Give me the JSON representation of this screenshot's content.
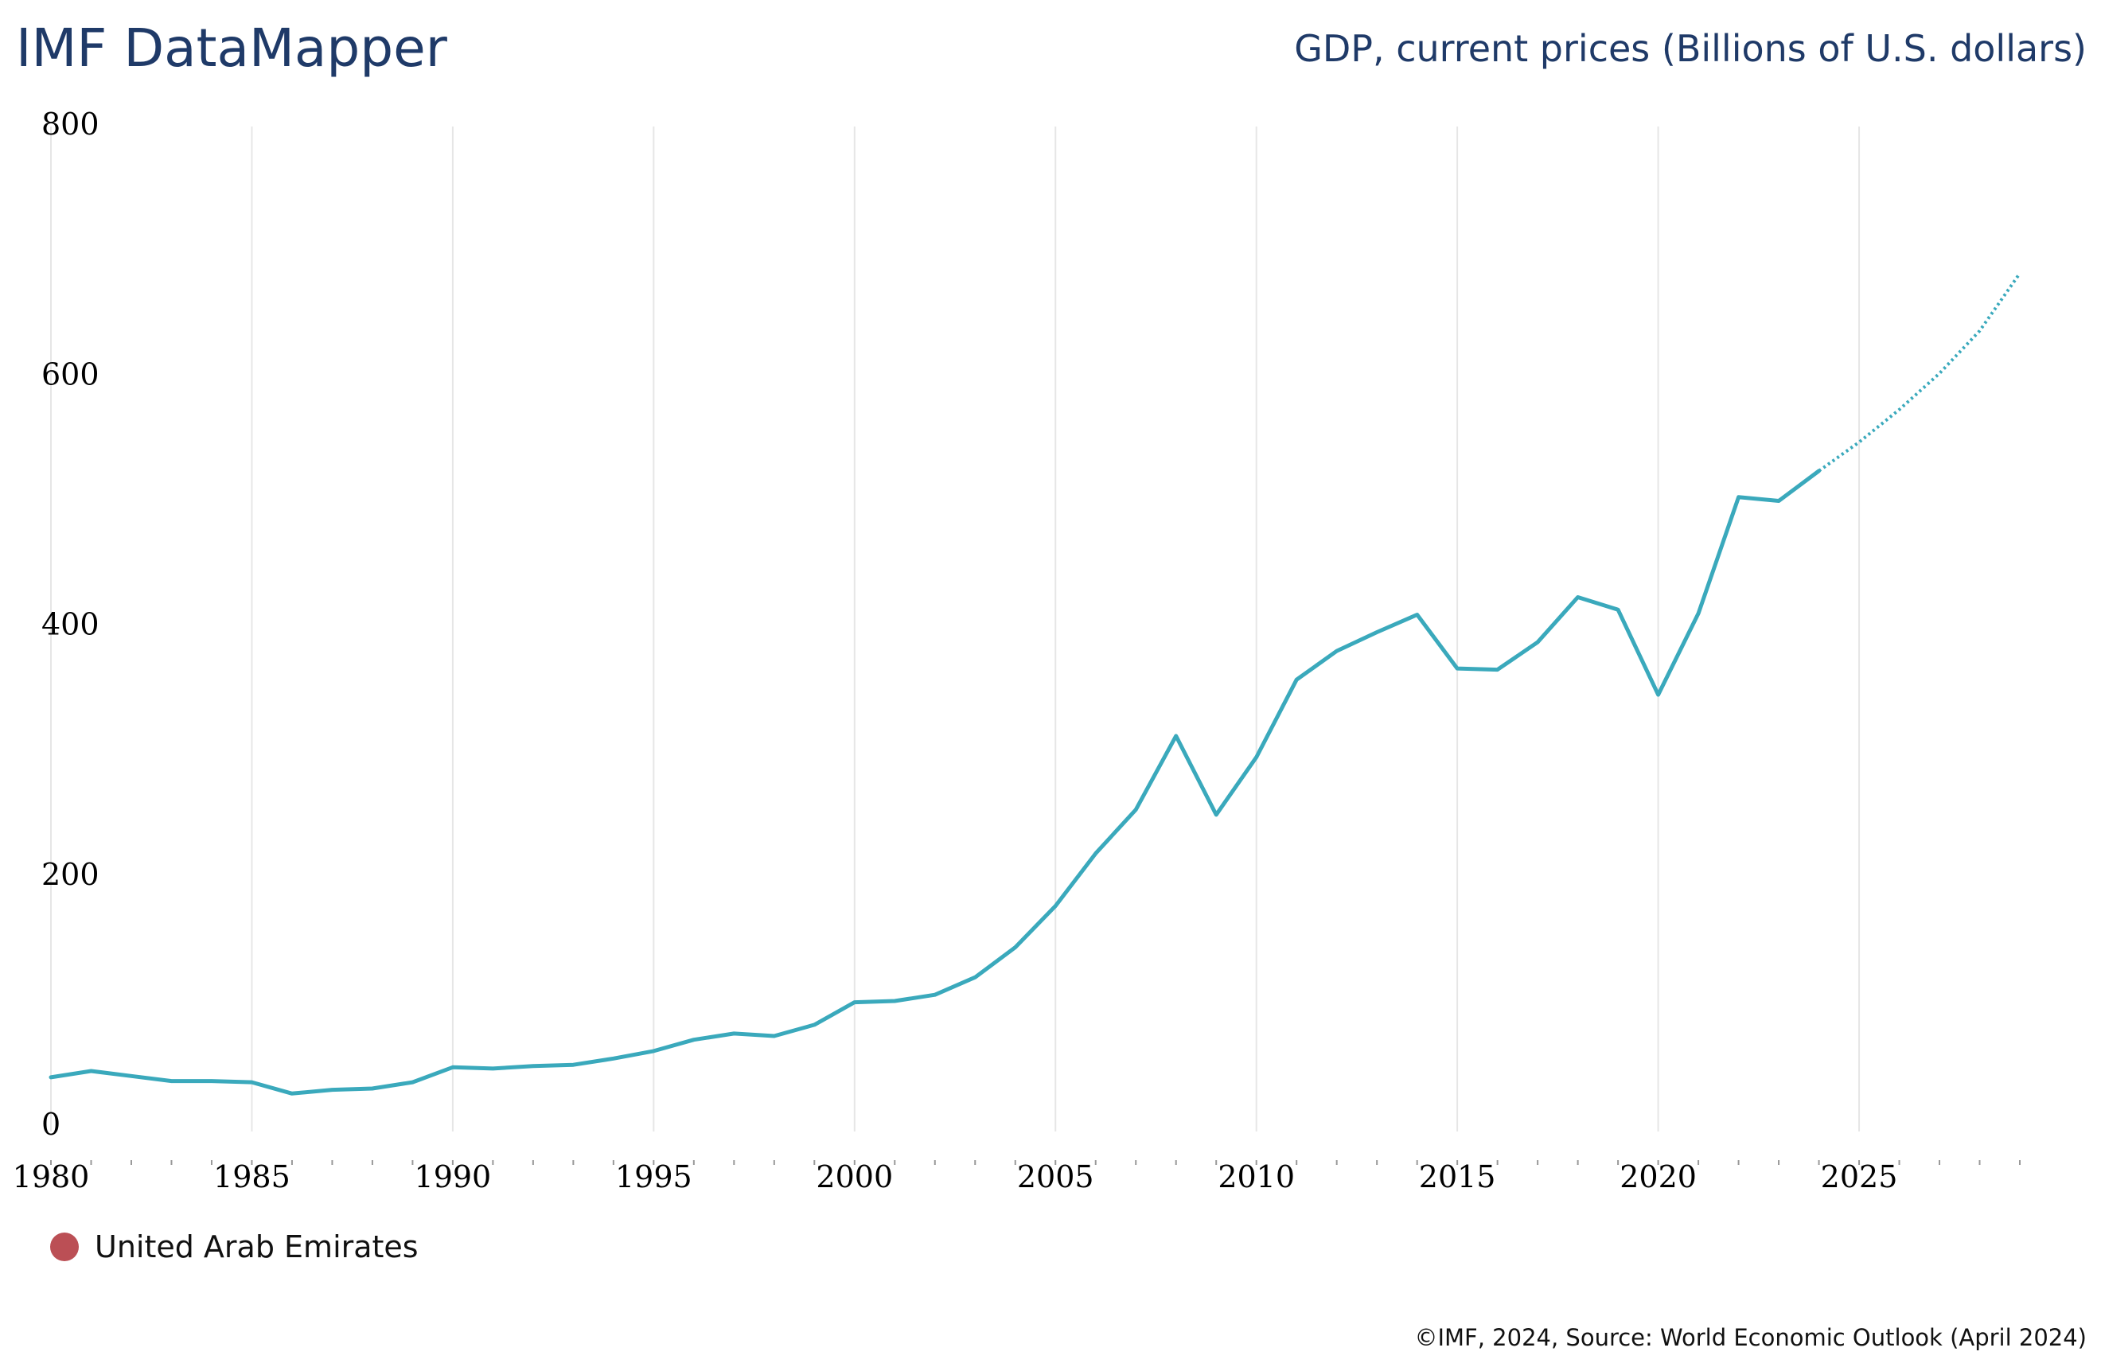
{
  "header": {
    "title": "IMF DataMapper",
    "indicator": "GDP, current prices (Billions of U.S. dollars)"
  },
  "legend": {
    "items": [
      {
        "label": "United Arab Emirates",
        "color": "#bb4f55"
      }
    ]
  },
  "footer": {
    "source": "©IMF, 2024, Source: World Economic Outlook (April 2024)"
  },
  "colors": {
    "line": "#3aa9bc",
    "grid": "#e6e6e6",
    "axis_text": "#000000",
    "header_text": "#1f3a68"
  },
  "chart_data": {
    "type": "line",
    "title": "GDP, current prices (Billions of U.S. dollars)",
    "xlabel": "",
    "ylabel": "",
    "xlim": [
      1980,
      2029
    ],
    "ylim": [
      0,
      800
    ],
    "x_ticks": [
      "1980",
      "1985",
      "1990",
      "1995",
      "2000",
      "2005",
      "2010",
      "2015",
      "2020",
      "2025"
    ],
    "y_ticks": [
      "0",
      "200",
      "400",
      "600",
      "800"
    ],
    "grid": "vertical",
    "forecast_start": 2024,
    "series": [
      {
        "name": "United Arab Emirates",
        "x": [
          1980,
          1981,
          1982,
          1983,
          1984,
          1985,
          1986,
          1987,
          1988,
          1989,
          1990,
          1991,
          1992,
          1993,
          1994,
          1995,
          1996,
          1997,
          1998,
          1999,
          2000,
          2001,
          2002,
          2003,
          2004,
          2005,
          2006,
          2007,
          2008,
          2009,
          2010,
          2011,
          2012,
          2013,
          2014,
          2015,
          2016,
          2017,
          2018,
          2019,
          2020,
          2021,
          2022,
          2023,
          2024,
          2025,
          2026,
          2027,
          2028,
          2029
        ],
        "y": [
          37,
          42,
          38,
          34,
          34,
          33,
          24,
          27,
          28,
          33,
          45,
          44,
          46,
          47,
          52,
          58,
          67,
          72,
          70,
          79,
          97,
          98,
          103,
          117,
          141,
          174,
          216,
          251,
          310,
          247,
          293,
          355,
          378,
          393,
          407,
          364,
          363,
          385,
          421,
          411,
          343,
          408,
          501,
          498,
          522,
          545,
          571,
          600,
          634,
          680
        ]
      }
    ]
  }
}
